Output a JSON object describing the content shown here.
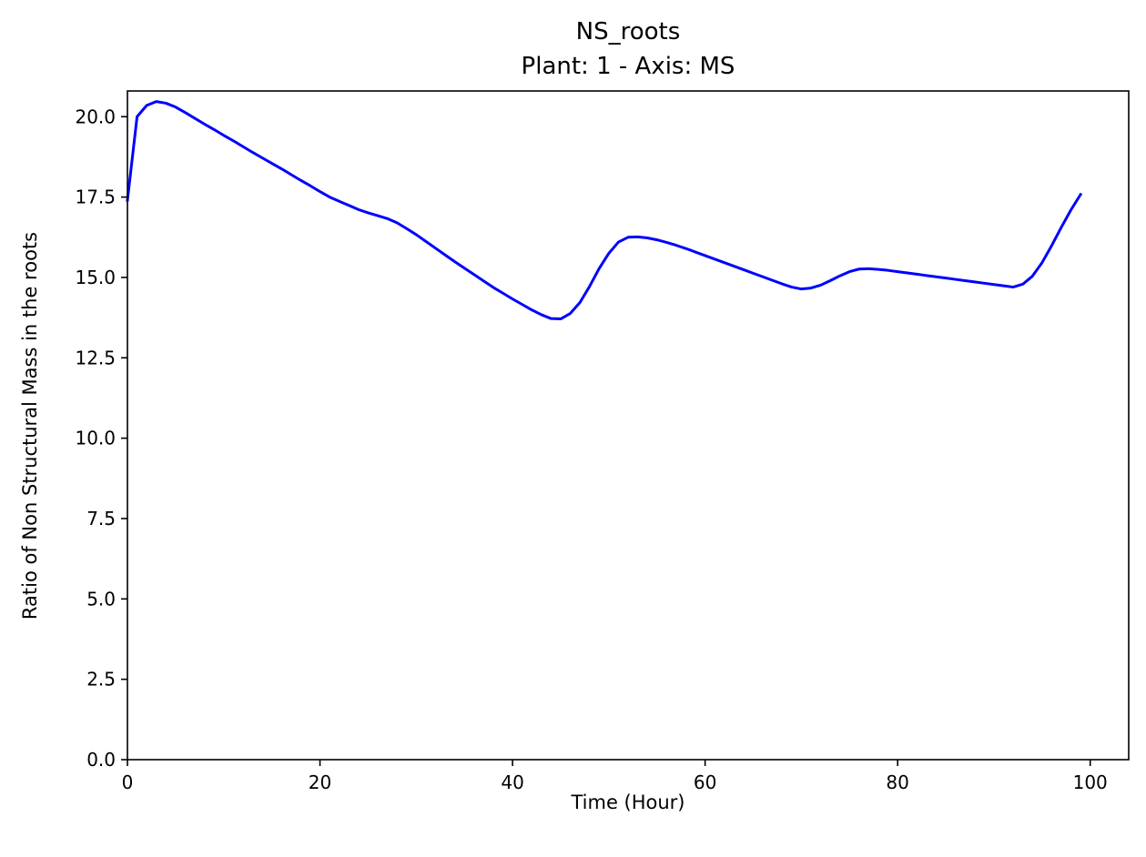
{
  "chart_data": {
    "type": "line",
    "title": "NS_roots",
    "subtitle": "Plant: 1 - Axis: MS",
    "xlabel": "Time (Hour)",
    "ylabel": "Ratio of Non Structural Mass in the roots",
    "xlim": [
      0,
      104
    ],
    "ylim": [
      0,
      20.8
    ],
    "xticks": [
      0,
      20,
      40,
      60,
      80,
      100
    ],
    "xtick_labels": [
      "0",
      "20",
      "40",
      "60",
      "80",
      "100"
    ],
    "yticks": [
      0,
      2.5,
      5,
      7.5,
      10,
      12.5,
      15,
      17.5,
      20
    ],
    "ytick_labels": [
      "0.0",
      "2.5",
      "5.0",
      "7.5",
      "10.0",
      "12.5",
      "15.0",
      "17.5",
      "20.0"
    ],
    "grid": false,
    "legend": "none",
    "series": [
      {
        "color": "#0000ff",
        "x": [
          0,
          1,
          2,
          3,
          4,
          5,
          6,
          7,
          8,
          9,
          10,
          11,
          12,
          13,
          14,
          15,
          16,
          17,
          18,
          19,
          20,
          21,
          22,
          23,
          24,
          25,
          26,
          27,
          28,
          29,
          30,
          31,
          32,
          33,
          34,
          35,
          36,
          37,
          38,
          39,
          40,
          41,
          42,
          43,
          44,
          45,
          46,
          47,
          48,
          49,
          50,
          51,
          52,
          53,
          54,
          55,
          56,
          57,
          58,
          59,
          60,
          61,
          62,
          63,
          64,
          65,
          66,
          67,
          68,
          69,
          70,
          71,
          72,
          73,
          74,
          75,
          76,
          77,
          78,
          79,
          80,
          81,
          82,
          83,
          84,
          85,
          86,
          87,
          88,
          89,
          90,
          91,
          92,
          93,
          94,
          95,
          96,
          97,
          98,
          99
        ],
        "y": [
          17.4,
          20.0,
          20.35,
          20.47,
          20.42,
          20.3,
          20.13,
          19.95,
          19.77,
          19.6,
          19.42,
          19.25,
          19.07,
          18.89,
          18.72,
          18.55,
          18.38,
          18.2,
          18.02,
          17.85,
          17.67,
          17.5,
          17.37,
          17.24,
          17.11,
          17.01,
          16.92,
          16.83,
          16.7,
          16.52,
          16.33,
          16.12,
          15.91,
          15.7,
          15.49,
          15.29,
          15.09,
          14.89,
          14.69,
          14.51,
          14.33,
          14.16,
          13.99,
          13.84,
          13.72,
          13.71,
          13.88,
          14.22,
          14.72,
          15.28,
          15.75,
          16.1,
          16.25,
          16.26,
          16.23,
          16.17,
          16.09,
          16.0,
          15.9,
          15.79,
          15.68,
          15.57,
          15.46,
          15.35,
          15.24,
          15.13,
          15.02,
          14.91,
          14.8,
          14.7,
          14.64,
          14.67,
          14.76,
          14.9,
          15.05,
          15.18,
          15.26,
          15.27,
          15.25,
          15.22,
          15.18,
          15.14,
          15.1,
          15.06,
          15.02,
          14.98,
          14.94,
          14.9,
          14.86,
          14.82,
          14.78,
          14.74,
          14.7,
          14.79,
          15.04,
          15.46,
          15.99,
          16.56,
          17.1,
          17.58
        ]
      }
    ]
  },
  "colors": {
    "line": "#0000ff",
    "axes": "#000000",
    "background": "#ffffff"
  }
}
